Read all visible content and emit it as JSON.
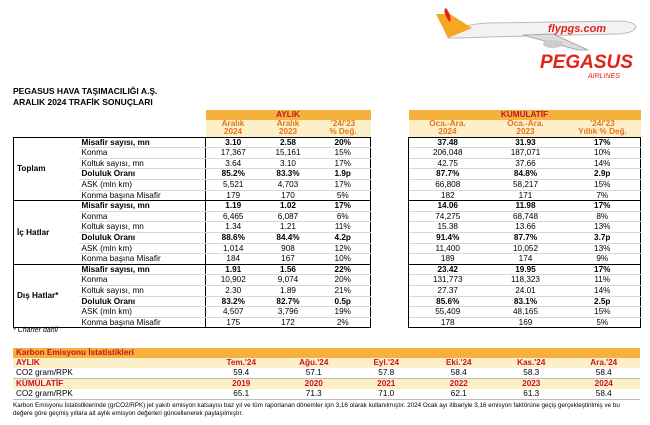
{
  "logo": {
    "site": "flypgs.com",
    "brand": "PEGASUS",
    "sub": "AIRLINES"
  },
  "header": {
    "company": "PEGASUS HAVA TAŞIMACILIĞI A.Ş.",
    "title": "ARALIK 2024 TRAFİK SONUÇLARI"
  },
  "traffic": {
    "sections": [
      "AYLIK",
      "KÜMÜLATİF"
    ],
    "columns": [
      [
        "Aralık",
        "2024"
      ],
      [
        "Aralık",
        "2023"
      ],
      [
        "'24/'23",
        "% Değ."
      ],
      [
        "Oca.-Ara.",
        "2024"
      ],
      [
        "Oca.-Ara.",
        "2023"
      ],
      [
        "'24/'23",
        "Yıllık % Değ."
      ]
    ],
    "groups": [
      {
        "name": "Toplam",
        "rows": [
          {
            "label": "Misafir sayısı, mn",
            "values": [
              "3.10",
              "2.58",
              "20%",
              "37.48",
              "31.93",
              "17%"
            ]
          },
          {
            "label": "Konma",
            "values": [
              "17,367",
              "15,161",
              "15%",
              "206,048",
              "187,071",
              "10%"
            ]
          },
          {
            "label": "Koltuk sayısı, mn",
            "values": [
              "3.64",
              "3.10",
              "17%",
              "42.75",
              "37.66",
              "14%"
            ]
          },
          {
            "label": "Doluluk Oranı",
            "values": [
              "85.2%",
              "83.3%",
              "1.9p",
              "87.7%",
              "84.8%",
              "2.9p"
            ]
          },
          {
            "label": "ASK (mln km)",
            "values": [
              "5,521",
              "4,703",
              "17%",
              "66,808",
              "58,217",
              "15%"
            ]
          },
          {
            "label": "Konma başına Misafir",
            "values": [
              "179",
              "170",
              "5%",
              "182",
              "171",
              "7%"
            ]
          }
        ]
      },
      {
        "name": "İç Hatlar",
        "rows": [
          {
            "label": "Misafir sayısı, mn",
            "values": [
              "1.19",
              "1.02",
              "17%",
              "14.06",
              "11.98",
              "17%"
            ]
          },
          {
            "label": "Konma",
            "values": [
              "6,465",
              "6,087",
              "6%",
              "74,275",
              "68,748",
              "8%"
            ]
          },
          {
            "label": "Koltuk sayısı, mn",
            "values": [
              "1.34",
              "1.21",
              "11%",
              "15.38",
              "13.66",
              "13%"
            ]
          },
          {
            "label": "Doluluk Oranı",
            "values": [
              "88.6%",
              "84.4%",
              "4.2p",
              "91.4%",
              "87.7%",
              "3.7p"
            ]
          },
          {
            "label": "ASK (mln km)",
            "values": [
              "1,014",
              "908",
              "12%",
              "11,400",
              "10,052",
              "13%"
            ]
          },
          {
            "label": "Konma başına Misafir",
            "values": [
              "184",
              "167",
              "10%",
              "189",
              "174",
              "9%"
            ]
          }
        ]
      },
      {
        "name": "Dış Hatlar*",
        "rows": [
          {
            "label": "Misafir sayısı, mn",
            "values": [
              "1.91",
              "1.56",
              "22%",
              "23.42",
              "19.95",
              "17%"
            ]
          },
          {
            "label": "Konma",
            "values": [
              "10,902",
              "9,074",
              "20%",
              "131,773",
              "118,323",
              "11%"
            ]
          },
          {
            "label": "Koltuk sayısı, mn",
            "values": [
              "2.30",
              "1.89",
              "21%",
              "27.37",
              "24.01",
              "14%"
            ]
          },
          {
            "label": "Doluluk Oranı",
            "values": [
              "83.2%",
              "82.7%",
              "0.5p",
              "85.6%",
              "83.1%",
              "2.5p"
            ]
          },
          {
            "label": "ASK (mln km)",
            "values": [
              "4,507",
              "3,796",
              "19%",
              "55,409",
              "48,165",
              "15%"
            ]
          },
          {
            "label": "Konma başına Misafir",
            "values": [
              "175",
              "172",
              "2%",
              "178",
              "169",
              "5%"
            ]
          }
        ]
      }
    ],
    "note": "* Charter dahil"
  },
  "carbon": {
    "title": "Karbon Emisyonu İstatistikleri",
    "blocks": [
      {
        "name": "AYLIK",
        "periods": [
          "Tem.'24",
          "Ağu.'24",
          "Eyl.'24",
          "Eki.'24",
          "Kas.'24",
          "Ara.'24"
        ],
        "metric": "CO2 gram/RPK",
        "values": [
          "59.4",
          "57.1",
          "57.8",
          "58.4",
          "58.3",
          "58.4"
        ]
      },
      {
        "name": "KÜMÜLATİF",
        "periods": [
          "2019",
          "2020",
          "2021",
          "2022",
          "2023",
          "2024"
        ],
        "metric": "CO2 gram/RPK",
        "values": [
          "65.1",
          "71.3",
          "71.0",
          "62.1",
          "61.3",
          "58.4"
        ]
      }
    ],
    "footnote": "Karbon Emisyonu İstatistiklerinde (grCO2/RPK) jet yakıtı emisyon katsayısı baz yıl ve tüm raporlanan dönemler için 3,16 olarak kullanılmıştır. 2024 Ocak ayı itibariyle 3,16 emisyon faktörüne geçiş gerçekleştirilmiş ve bu değere göre geçmiş yıllara ait aylık emisyon değerleri güncellenerek paylaşılmıştır."
  }
}
